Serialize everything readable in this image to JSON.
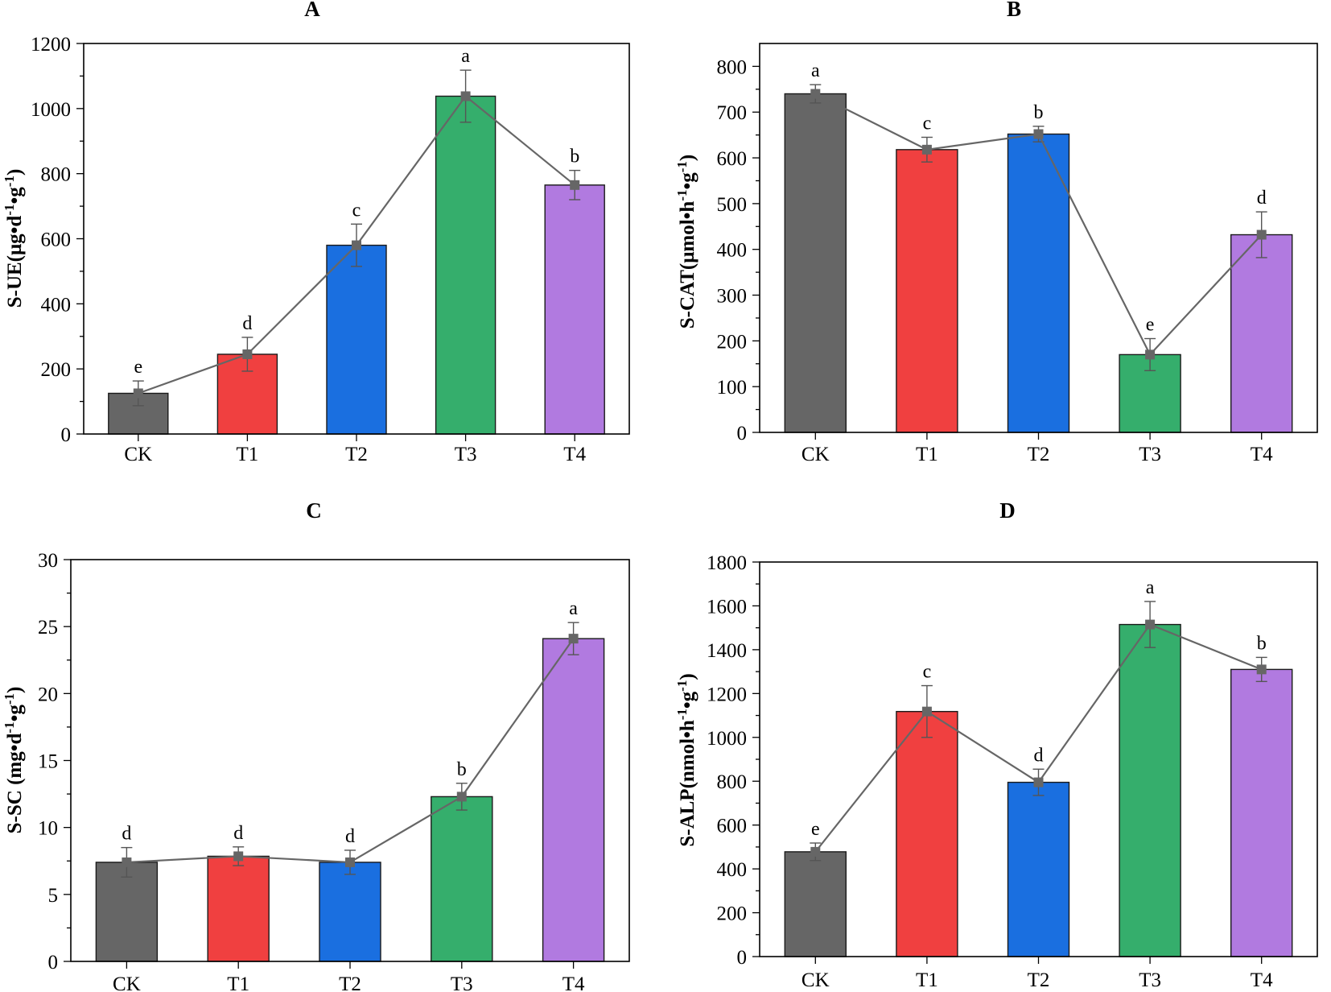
{
  "chart_data": [
    {
      "type": "bar",
      "panel": "A",
      "title": "A",
      "ylabel": "S-UE(μg•d<sup>-1</sup>•g<sup>-1</sup>)",
      "xlabel": "",
      "categories": [
        "CK",
        "T1",
        "T2",
        "T3",
        "T4"
      ],
      "values": [
        125,
        245,
        580,
        1038,
        765
      ],
      "errors": [
        38,
        52,
        65,
        80,
        45
      ],
      "letters": [
        "e",
        "d",
        "c",
        "a",
        "b"
      ],
      "ylim": [
        0,
        1200
      ],
      "yticks": [
        0,
        200,
        400,
        600,
        800,
        1000,
        1200
      ],
      "overlay_line": true
    },
    {
      "type": "bar",
      "panel": "B",
      "title": "B",
      "ylabel": "S-CAT(μmol•h<sup>-1</sup>•g<sup>-1</sup>)",
      "xlabel": "",
      "categories": [
        "CK",
        "T1",
        "T2",
        "T3",
        "T4"
      ],
      "values": [
        740,
        618,
        652,
        170,
        432
      ],
      "errors": [
        20,
        27,
        17,
        35,
        50
      ],
      "letters": [
        "a",
        "c",
        "b",
        "e",
        "d"
      ],
      "ylim": [
        0,
        850
      ],
      "yticks": [
        0,
        100,
        200,
        300,
        400,
        500,
        600,
        700,
        800
      ],
      "overlay_line": true
    },
    {
      "type": "bar",
      "panel": "C",
      "title": "C",
      "ylabel": "S-SC (mg•d<sup>-1</sup>•g<sup>-1</sup>)",
      "xlabel": "",
      "categories": [
        "CK",
        "T1",
        "T2",
        "T3",
        "T4"
      ],
      "values": [
        7.4,
        7.85,
        7.4,
        12.3,
        24.1
      ],
      "errors": [
        1.1,
        0.7,
        0.9,
        1.0,
        1.2
      ],
      "letters": [
        "d",
        "d",
        "d",
        "b",
        "a"
      ],
      "ylim": [
        0,
        30
      ],
      "yticks": [
        0,
        5,
        10,
        15,
        20,
        25,
        30
      ],
      "overlay_line": true
    },
    {
      "type": "bar",
      "panel": "D",
      "title": "D",
      "ylabel": "S-ALP(nmol•h<sup>-1</sup>•g<sup>-1</sup>)",
      "xlabel": "",
      "categories": [
        "CK",
        "T1",
        "T2",
        "T3",
        "T4"
      ],
      "values": [
        478,
        1118,
        795,
        1515,
        1310
      ],
      "errors": [
        40,
        118,
        60,
        105,
        55
      ],
      "letters": [
        "e",
        "c",
        "d",
        "a",
        "b"
      ],
      "ylim": [
        0,
        1800
      ],
      "yticks": [
        0,
        200,
        400,
        600,
        800,
        1000,
        1200,
        1400,
        1600,
        1800
      ],
      "overlay_line": true
    }
  ],
  "colors": {
    "bars": [
      "#666666",
      "#f04040",
      "#1a6fe0",
      "#35ae6c",
      "#b17ae0"
    ],
    "line": "#666666",
    "axis": "#000000"
  }
}
